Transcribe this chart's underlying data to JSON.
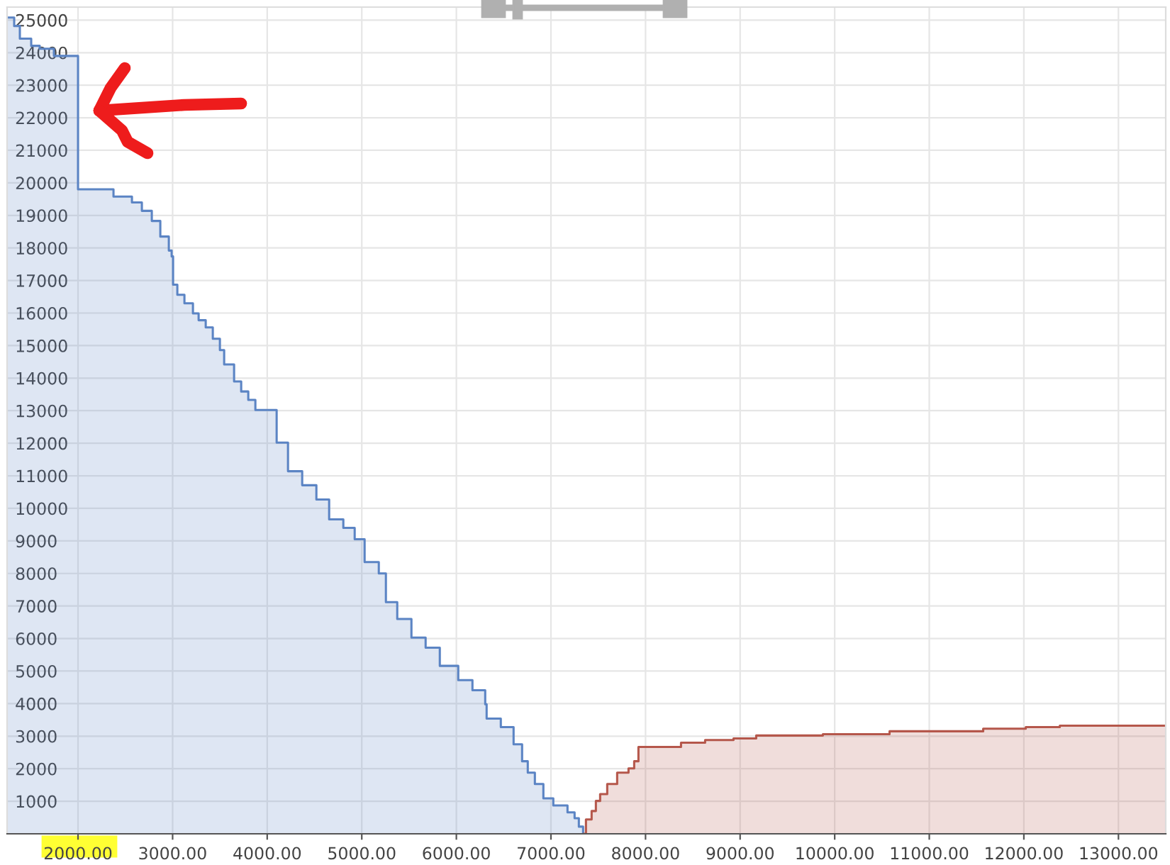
{
  "chart_data": {
    "type": "step",
    "series": [
      {
        "color": "#5b84c4",
        "x": [
          1250,
          1325,
          1385,
          1505,
          1595,
          1745,
          2000,
          2375,
          2570,
          2675,
          2780,
          2870,
          2960,
          2990,
          3005,
          3050,
          3125,
          3215,
          3275,
          3350,
          3425,
          3500,
          3545,
          3650,
          3725,
          3800,
          3875,
          4100,
          4220,
          4370,
          4520,
          4655,
          4805,
          4925,
          5030,
          5180,
          5255,
          5375,
          5525,
          5675,
          5825,
          6020,
          6170,
          6305,
          6320,
          6470,
          6605,
          6695,
          6755,
          6830,
          6920,
          7025,
          7175,
          7250,
          7295,
          7340
        ],
        "values": [
          25080,
          24820,
          24430,
          24210,
          24120,
          23900,
          19800,
          19580,
          19400,
          19140,
          18830,
          18350,
          17920,
          17740,
          16870,
          16560,
          16300,
          15990,
          15780,
          15560,
          15210,
          14860,
          14420,
          13900,
          13590,
          13330,
          13020,
          12020,
          11140,
          10710,
          10270,
          9660,
          9400,
          9050,
          8350,
          8000,
          7120,
          6600,
          6030,
          5720,
          5160,
          4720,
          4410,
          3980,
          3540,
          3280,
          2750,
          2230,
          1880,
          1530,
          1090,
          870,
          660,
          480,
          220,
          0
        ]
      },
      {
        "color": "#b5574b",
        "x": [
          7350,
          7370,
          7430,
          7475,
          7520,
          7595,
          7700,
          7820,
          7880,
          7925,
          8375,
          8630,
          8930,
          9170,
          9875,
          10580,
          11570,
          12020,
          12380,
          13500
        ],
        "values": [
          0,
          440,
          700,
          1010,
          1220,
          1530,
          1880,
          2010,
          2230,
          2670,
          2800,
          2880,
          2930,
          3020,
          3060,
          3150,
          3230,
          3280,
          3320,
          3320
        ]
      }
    ],
    "xlim": [
      1250,
      13500
    ],
    "xticks": [
      {
        "value": 2000,
        "label": "2000.00"
      },
      {
        "value": 3000,
        "label": "3000.00"
      },
      {
        "value": 4000,
        "label": "4000.00"
      },
      {
        "value": 5000,
        "label": "5000.00"
      },
      {
        "value": 6000,
        "label": "6000.00"
      },
      {
        "value": 7000,
        "label": "7000.00"
      },
      {
        "value": 8000,
        "label": "8000.00"
      },
      {
        "value": 9000,
        "label": "9000.00"
      },
      {
        "value": 10000,
        "label": "10000.00"
      },
      {
        "value": 11000,
        "label": "11000.00"
      },
      {
        "value": 12000,
        "label": "12000.00"
      },
      {
        "value": 13000,
        "label": "13000.00"
      }
    ],
    "ylim": [
      0,
      25400
    ],
    "yticks": [
      1000,
      2000,
      3000,
      4000,
      5000,
      6000,
      7000,
      8000,
      9000,
      10000,
      11000,
      12000,
      13000,
      14000,
      15000,
      16000,
      17000,
      18000,
      19000,
      20000,
      21000,
      22000,
      23000,
      24000,
      25000
    ],
    "grid": true
  }
}
